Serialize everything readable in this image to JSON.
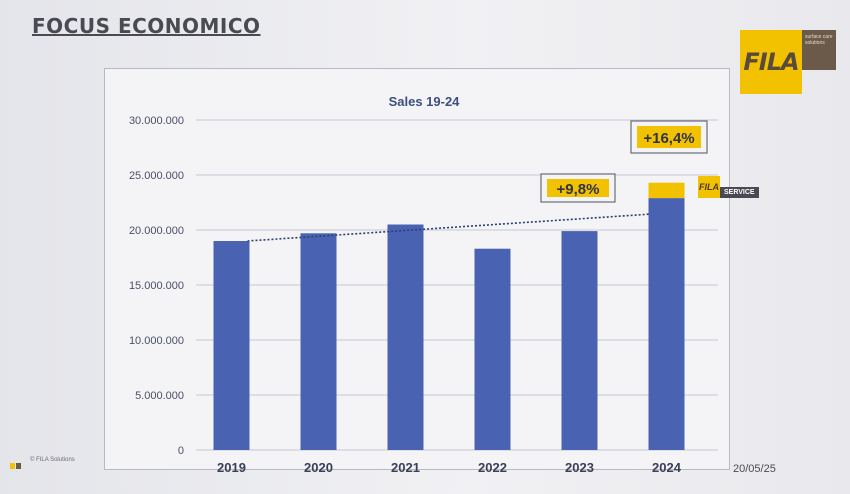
{
  "page": {
    "title": "FOCUS ECONOMICO",
    "footer": "© FILA Solutions",
    "date": "20/05/25"
  },
  "logo": {
    "text": "FILA",
    "tagline": "surface care solutions",
    "color": "#f2c200"
  },
  "service_badge": {
    "mark": "FILA",
    "label": "SERVICE"
  },
  "colors": {
    "bar": "#4a62b2",
    "service": "#f2c200",
    "trend": "#2a3f6e",
    "grid": "#c6c9d3",
    "callout_fill": "#f2c200"
  },
  "chart_data": {
    "type": "bar",
    "title": "Sales 19-24",
    "categories": [
      "2019",
      "2020",
      "2021",
      "2022",
      "2023",
      "2024"
    ],
    "series": [
      {
        "values": [
          19000000,
          19700000,
          20500000,
          18300000,
          19900000,
          22900000
        ]
      },
      {
        "values": [
          0,
          0,
          0,
          0,
          0,
          1400000
        ]
      }
    ],
    "stacked": true,
    "ylim": [
      0,
      30000000
    ],
    "yticks": [
      0,
      5000000,
      10000000,
      15000000,
      20000000,
      25000000,
      30000000
    ],
    "ytick_labels": [
      "0",
      "5.000.000",
      "10.000.000",
      "15.000.000",
      "20.000.000",
      "25.000.000",
      "30.000.000"
    ],
    "grid": true,
    "trendline": {
      "style": "dotted",
      "from": "2019",
      "to": "2024"
    },
    "annotations": [
      {
        "text": "+9,8%"
      },
      {
        "text": "+16,4%"
      }
    ]
  }
}
